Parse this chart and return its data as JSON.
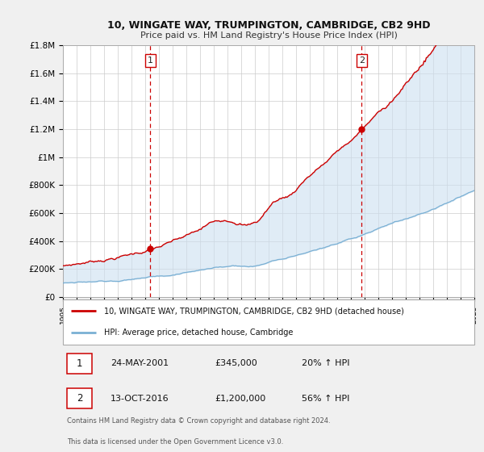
{
  "title": "10, WINGATE WAY, TRUMPINGTON, CAMBRIDGE, CB2 9HD",
  "subtitle": "Price paid vs. HM Land Registry's House Price Index (HPI)",
  "x_start_year": 1995,
  "x_end_year": 2025,
  "y_min": 0,
  "y_max": 1800000,
  "yticks": [
    0,
    200000,
    400000,
    600000,
    800000,
    1000000,
    1200000,
    1400000,
    1600000,
    1800000
  ],
  "ytick_labels": [
    "£0",
    "£200K",
    "£400K",
    "£600K",
    "£800K",
    "£1M",
    "£1.2M",
    "£1.4M",
    "£1.6M",
    "£1.8M"
  ],
  "sale1_date": "24-MAY-2001",
  "sale1_price": 345000,
  "sale1_pct": "20%",
  "sale2_date": "13-OCT-2016",
  "sale2_price": 1200000,
  "sale2_pct": "56%",
  "sale1_year": 2001.38,
  "sale2_year": 2016.79,
  "red_color": "#cc0000",
  "blue_color": "#7ab0d4",
  "shade_color": "#cce0f0",
  "vline_color": "#cc0000",
  "legend_label_red": "10, WINGATE WAY, TRUMPINGTON, CAMBRIDGE, CB2 9HD (detached house)",
  "legend_label_blue": "HPI: Average price, detached house, Cambridge",
  "footer1": "Contains HM Land Registry data © Crown copyright and database right 2024.",
  "footer2": "This data is licensed under the Open Government Licence v3.0.",
  "bg_color": "#f0f0f0",
  "plot_bg_color": "#ffffff",
  "grid_color": "#cccccc"
}
